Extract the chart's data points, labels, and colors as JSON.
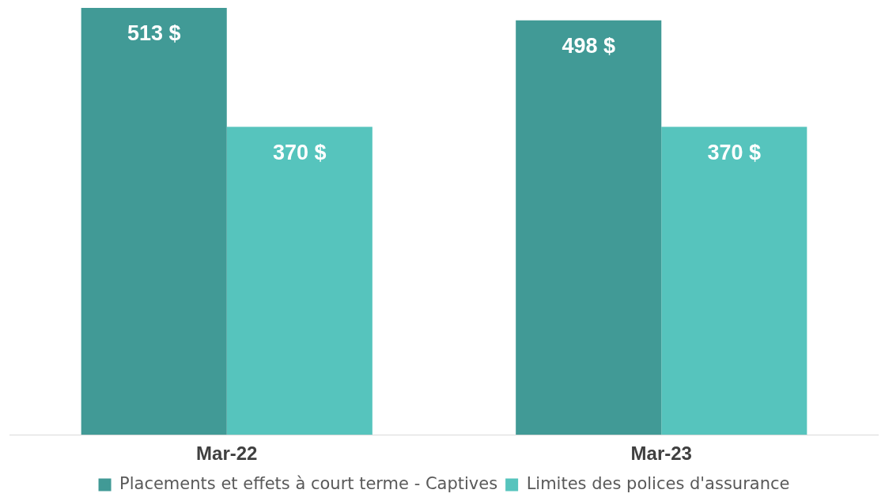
{
  "chart_data": {
    "type": "bar",
    "categories": [
      "Mar-22",
      "Mar-23"
    ],
    "series": [
      {
        "name": "Placements et effets à court terme - Captives",
        "color": "#419a96",
        "values": [
          513,
          498
        ],
        "value_labels": [
          "513 $",
          "498 $"
        ]
      },
      {
        "name": "Limites des polices d'assurance",
        "color": "#56c4bd",
        "values": [
          370,
          370
        ],
        "value_labels": [
          "370 $",
          "370 $"
        ]
      }
    ],
    "grid": false,
    "legend": "bottom",
    "tick_labels": "x"
  }
}
